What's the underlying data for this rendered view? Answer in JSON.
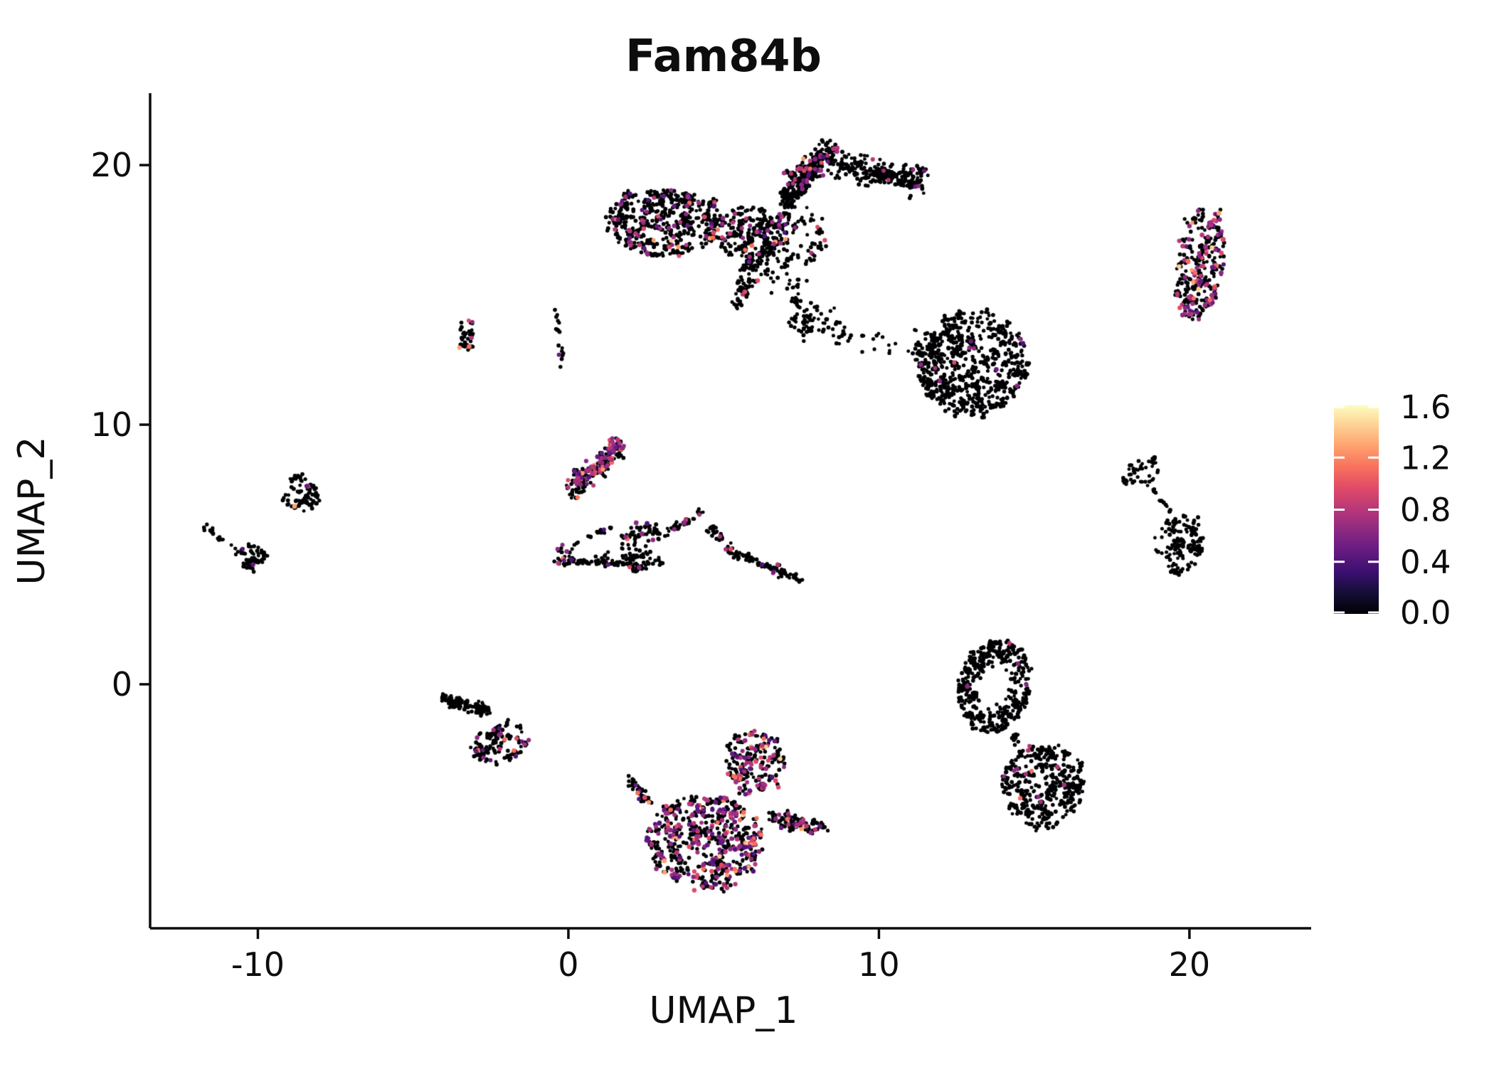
{
  "figure": {
    "title": "Fam84b"
  },
  "chart_data": {
    "type": "scatter",
    "title": "Fam84b",
    "xlabel": "UMAP_1",
    "ylabel": "UMAP_2",
    "grid": false,
    "xlim": [
      -13.47,
      23.92
    ],
    "ylim": [
      -9.4,
      22.77
    ],
    "x_ticks": {
      "values": [
        -10,
        0,
        10,
        20
      ],
      "labels": [
        "-10",
        "0",
        "10",
        "20"
      ]
    },
    "y_ticks": {
      "values": [
        0,
        10,
        20
      ],
      "labels": [
        "0",
        "10",
        "20"
      ]
    },
    "colorbar": {
      "position": "right",
      "vmin": 0.0,
      "vmax": 1.6,
      "tick_values": [
        1.6,
        1.2,
        0.8,
        0.4,
        0.0
      ],
      "tick_labels": [
        "1.6",
        "1.2",
        "0.8",
        "0.4",
        "0.0"
      ],
      "colormap_name": "magma",
      "stops": [
        {
          "t": 0.0,
          "c": "#000004"
        },
        {
          "t": 0.1,
          "c": "#140e36"
        },
        {
          "t": 0.2,
          "c": "#3b0f70"
        },
        {
          "t": 0.3,
          "c": "#641a80"
        },
        {
          "t": 0.4,
          "c": "#8c2981"
        },
        {
          "t": 0.5,
          "c": "#b73779"
        },
        {
          "t": 0.6,
          "c": "#de4968"
        },
        {
          "t": 0.7,
          "c": "#f76f5c"
        },
        {
          "t": 0.8,
          "c": "#fe9f6d"
        },
        {
          "t": 0.9,
          "c": "#fecf92"
        },
        {
          "t": 1.0,
          "c": "#fcfdbf"
        }
      ]
    },
    "point_style": {
      "base_color": "#000004",
      "radius_base": 2.4,
      "radius_colored": 2.9,
      "colored_palette": [
        {
          "c": "#51127c",
          "w": 0.1
        },
        {
          "c": "#641a80",
          "w": 0.12
        },
        {
          "c": "#8c2981",
          "w": 0.22
        },
        {
          "c": "#a3307e",
          "w": 0.16
        },
        {
          "c": "#b73779",
          "w": 0.18
        },
        {
          "c": "#de4968",
          "w": 0.1
        },
        {
          "c": "#f76f5c",
          "w": 0.07
        },
        {
          "c": "#fe9f6d",
          "w": 0.04
        },
        {
          "c": "#fecf92",
          "w": 0.008
        },
        {
          "c": "#fcfdbf",
          "w": 0.002
        }
      ]
    },
    "clusters": [
      {
        "name": "top-band-left",
        "kind": "ellipse",
        "cx": 3.1,
        "cy": 17.8,
        "rx": 1.9,
        "ry": 1.3,
        "rot": 0,
        "n": 550,
        "colored": 0.13
      },
      {
        "name": "top-band-right",
        "kind": "ellipse",
        "cx": 5.8,
        "cy": 17.4,
        "rx": 1.3,
        "ry": 1.0,
        "rot": 0,
        "n": 220,
        "colored": 0.1
      },
      {
        "name": "top-junction",
        "kind": "ellipse",
        "cx": 6.9,
        "cy": 17.3,
        "rx": 1.5,
        "ry": 1.3,
        "rot": 0,
        "n": 170,
        "colored": 0.08
      },
      {
        "name": "top-upper-arm",
        "kind": "segment",
        "x1": 6.9,
        "y1": 18.6,
        "x2": 8.5,
        "y2": 20.7,
        "w": 1.15,
        "n": 320,
        "colored": 0.1
      },
      {
        "name": "top-right-arm",
        "kind": "segment",
        "x1": 8.7,
        "y1": 20.0,
        "x2": 11.5,
        "y2": 19.4,
        "w": 1.35,
        "n": 240,
        "colored": 0.05
      },
      {
        "name": "top-lower-arm",
        "kind": "segment",
        "x1": 5.95,
        "y1": 16.4,
        "x2": 5.45,
        "y2": 14.5,
        "w": 0.75,
        "n": 90,
        "colored": 0.1
      },
      {
        "name": "top-sparse-trail",
        "kind": "segment",
        "x1": 6.5,
        "y1": 16.2,
        "x2": 8.7,
        "y2": 13.2,
        "w": 1.6,
        "n": 70,
        "colored": 0.02
      },
      {
        "name": "left-of-center-wisp",
        "kind": "segment",
        "x1": -0.45,
        "y1": 14.7,
        "x2": -0.15,
        "y2": 12.1,
        "w": 0.3,
        "n": 18,
        "colored": 0.05
      },
      {
        "name": "bridge-hook",
        "kind": "ellipse",
        "cx": 7.5,
        "cy": 13.8,
        "rx": 0.45,
        "ry": 0.65,
        "rot": 0,
        "n": 30,
        "colored": 0.03
      },
      {
        "name": "bridge-trail",
        "kind": "segment",
        "x1": 8.0,
        "y1": 13.7,
        "x2": 11.3,
        "y2": 13.1,
        "w": 1.1,
        "n": 35,
        "colored": 0.02
      },
      {
        "name": "right-center-blob",
        "kind": "ellipse",
        "cx": 13.0,
        "cy": 12.35,
        "rx": 1.85,
        "ry": 2.0,
        "rot": -15,
        "n": 750,
        "colored": 0.015
      },
      {
        "name": "far-right-column",
        "kind": "ellipse",
        "cx": 20.35,
        "cy": 16.2,
        "rx": 0.75,
        "ry": 2.2,
        "rot": 8,
        "n": 330,
        "colored": 0.25
      },
      {
        "name": "right-hook-top",
        "kind": "ellipse",
        "cx": 18.5,
        "cy": 8.2,
        "rx": 0.7,
        "ry": 0.45,
        "rot": -25,
        "n": 50,
        "colored": 0.0
      },
      {
        "name": "right-hook-trail",
        "kind": "segment",
        "x1": 18.7,
        "y1": 7.6,
        "x2": 19.4,
        "y2": 6.6,
        "w": 0.22,
        "n": 14,
        "colored": 0.0
      },
      {
        "name": "right-lower-blob",
        "kind": "ellipse",
        "cx": 19.65,
        "cy": 5.4,
        "rx": 0.78,
        "ry": 1.15,
        "rot": 10,
        "n": 150,
        "colored": 0.01
      },
      {
        "name": "center-upper-blob",
        "kind": "segment",
        "x1": 0.0,
        "y1": 7.4,
        "x2": 1.7,
        "y2": 9.3,
        "w": 0.95,
        "n": 240,
        "colored": 0.3
      },
      {
        "name": "net-left-node",
        "kind": "ellipse",
        "cx": -0.1,
        "cy": 5.0,
        "rx": 0.28,
        "ry": 0.5,
        "rot": 0,
        "n": 25,
        "colored": 0.08
      },
      {
        "name": "net-top-chain",
        "kind": "segment",
        "x1": 0.1,
        "y1": 5.3,
        "x2": 1.6,
        "y2": 6.2,
        "w": 0.16,
        "n": 18,
        "colored": 0.05
      },
      {
        "name": "net-bottom-line",
        "kind": "segment",
        "x1": -0.1,
        "y1": 4.75,
        "x2": 2.5,
        "y2": 4.6,
        "w": 0.22,
        "n": 70,
        "colored": 0.06
      },
      {
        "name": "net-triangle",
        "kind": "ellipse",
        "cx": 2.35,
        "cy": 5.3,
        "rx": 0.68,
        "ry": 1.0,
        "rot": 15,
        "n": 110,
        "colored": 0.08
      },
      {
        "name": "net-rise",
        "kind": "segment",
        "x1": 3.05,
        "y1": 5.65,
        "x2": 4.3,
        "y2": 6.7,
        "w": 0.3,
        "n": 40,
        "colored": 0.06
      },
      {
        "name": "net-descend",
        "kind": "segment",
        "x1": 4.5,
        "y1": 6.3,
        "x2": 5.4,
        "y2": 4.8,
        "w": 0.3,
        "n": 40,
        "colored": 0.1
      },
      {
        "name": "net-tail",
        "kind": "segment",
        "x1": 5.4,
        "y1": 5.05,
        "x2": 7.5,
        "y2": 4.0,
        "w": 0.22,
        "n": 90,
        "colored": 0.08
      },
      {
        "name": "small-midleft-blob",
        "kind": "ellipse",
        "cx": -3.3,
        "cy": 13.45,
        "rx": 0.32,
        "ry": 0.66,
        "rot": 0,
        "n": 40,
        "colored": 0.1
      },
      {
        "name": "sw-upper-lobe",
        "kind": "segment",
        "x1": -4.1,
        "y1": -0.55,
        "x2": -2.5,
        "y2": -1.05,
        "w": 0.6,
        "n": 120,
        "colored": 0.01
      },
      {
        "name": "sw-lower-lobe",
        "kind": "ellipse",
        "cx": -2.2,
        "cy": -2.3,
        "rx": 1.0,
        "ry": 0.75,
        "rot": -20,
        "n": 140,
        "colored": 0.12
      },
      {
        "name": "bottom-upper-lobe",
        "kind": "ellipse",
        "cx": 6.0,
        "cy": -3.0,
        "rx": 0.95,
        "ry": 1.2,
        "rot": 10,
        "n": 220,
        "colored": 0.3
      },
      {
        "name": "bottom-left-arm",
        "kind": "segment",
        "x1": 1.8,
        "y1": -3.6,
        "x2": 3.0,
        "y2": -5.0,
        "w": 0.5,
        "n": 40,
        "colored": 0.08
      },
      {
        "name": "bottom-main-mass",
        "kind": "ellipse",
        "cx": 4.4,
        "cy": -6.1,
        "rx": 1.9,
        "ry": 1.85,
        "rot": 0,
        "n": 650,
        "colored": 0.32
      },
      {
        "name": "bottom-right-arm",
        "kind": "segment",
        "x1": 6.4,
        "y1": -5.1,
        "x2": 8.2,
        "y2": -5.5,
        "w": 0.6,
        "n": 110,
        "colored": 0.15
      },
      {
        "name": "se-top-ring",
        "kind": "ring",
        "cx": 13.7,
        "cy": -0.1,
        "rx": 1.15,
        "ry": 1.8,
        "inner": 0.4,
        "rot": 15,
        "n": 420,
        "colored": 0.005
      },
      {
        "name": "se-neck",
        "kind": "segment",
        "x1": 14.3,
        "y1": -1.95,
        "x2": 14.6,
        "y2": -2.6,
        "w": 0.3,
        "n": 15,
        "colored": 0.0
      },
      {
        "name": "se-bottom-lobe",
        "kind": "ellipse",
        "cx": 15.3,
        "cy": -3.9,
        "rx": 1.35,
        "ry": 1.6,
        "rot": -30,
        "n": 420,
        "colored": 0.04
      },
      {
        "name": "left-upper-blob",
        "kind": "ellipse",
        "cx": -8.65,
        "cy": 7.4,
        "rx": 0.62,
        "ry": 0.78,
        "rot": -20,
        "n": 90,
        "colored": 0.02
      },
      {
        "name": "left-trail",
        "kind": "segment",
        "x1": -11.75,
        "y1": 6.0,
        "x2": -10.9,
        "y2": 5.35,
        "w": 0.22,
        "n": 16,
        "colored": 0.0
      },
      {
        "name": "left-lower-blob",
        "kind": "ellipse",
        "cx": -10.2,
        "cy": 4.95,
        "rx": 0.52,
        "ry": 0.4,
        "rot": 0,
        "n": 60,
        "colored": 0.03
      }
    ]
  }
}
